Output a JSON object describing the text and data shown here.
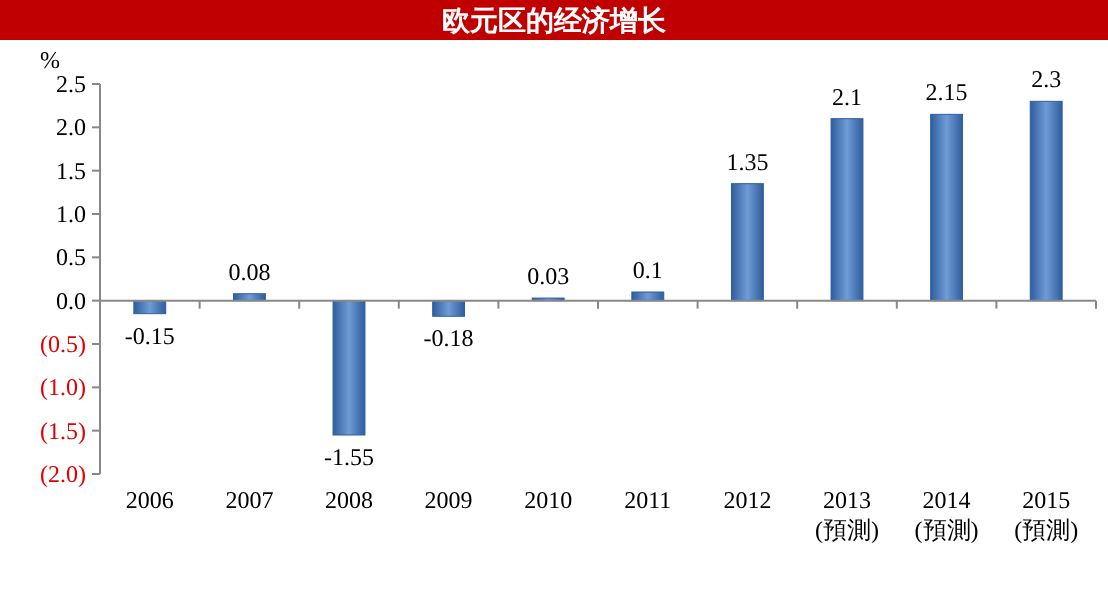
{
  "chart_data": {
    "type": "bar",
    "title": "欧元区的经济增长",
    "ylabel": "%",
    "categories": [
      "2006",
      "2007",
      "2008",
      "2009",
      "2010",
      "2011",
      "2012",
      "2013\n(預測)",
      "2014\n(預測)",
      "2015\n(預測)"
    ],
    "values": [
      -0.15,
      0.08,
      -1.55,
      -0.18,
      0.03,
      0.1,
      1.35,
      2.1,
      2.15,
      2.3
    ],
    "color": "#2f5e9e",
    "data_labels": true,
    "ylim": [
      -2.0,
      2.5
    ],
    "yticks": [
      {
        "value": 2.5,
        "label": "2.5"
      },
      {
        "value": 2.0,
        "label": "2.0"
      },
      {
        "value": 1.5,
        "label": "1.5"
      },
      {
        "value": 1.0,
        "label": "1.0"
      },
      {
        "value": 0.5,
        "label": "0.5"
      },
      {
        "value": 0,
        "label": "0.0"
      },
      {
        "value": -0.5,
        "label": "(0.5)"
      },
      {
        "value": -1.0,
        "label": "(1.0)"
      },
      {
        "value": -1.5,
        "label": "(1.5)"
      },
      {
        "value": -2.0,
        "label": "(2.0)"
      }
    ]
  }
}
